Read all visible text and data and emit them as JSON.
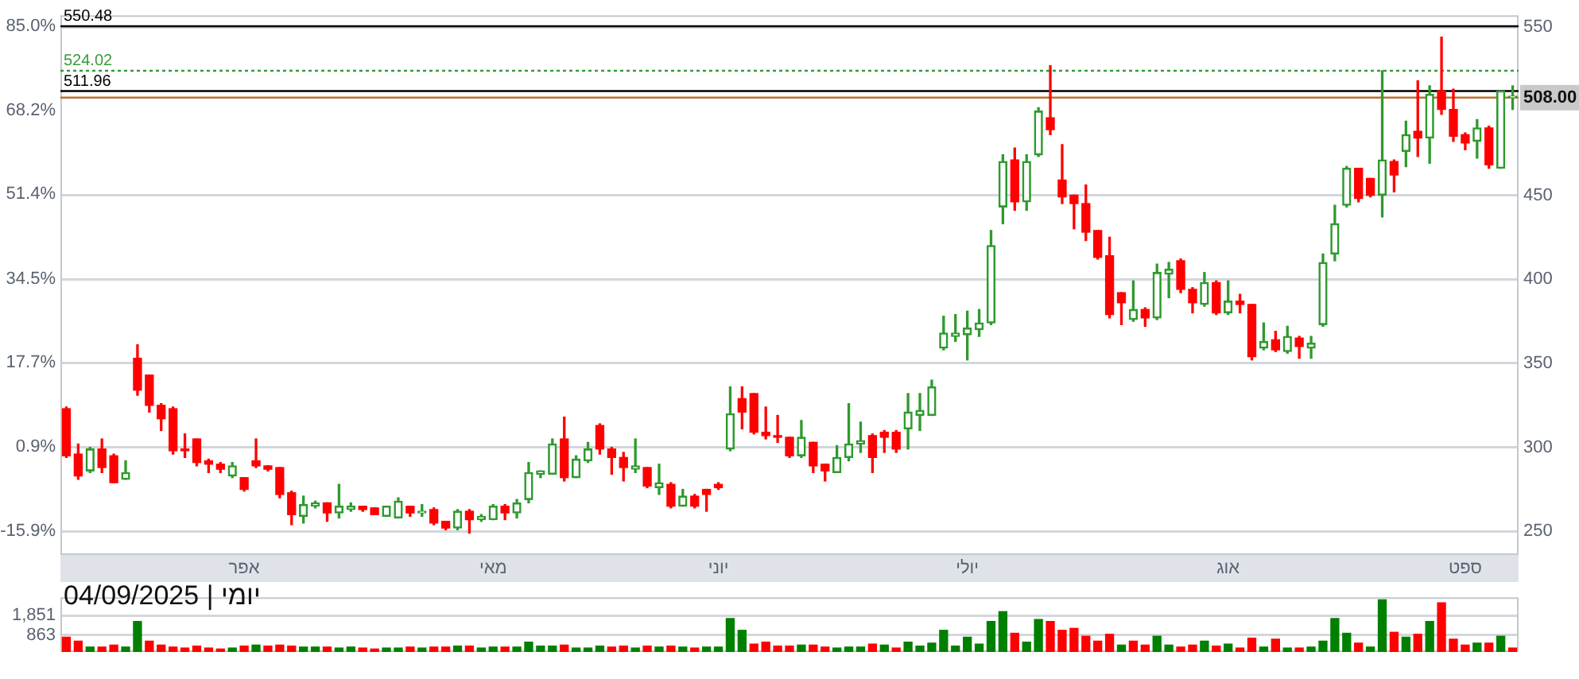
{
  "chart_data": [
    {
      "type": "candlestick",
      "categories": [
        null,
        null,
        null,
        null,
        null,
        null,
        null,
        null,
        null,
        null,
        null,
        null,
        null,
        null,
        null,
        "אפר",
        null,
        null,
        null,
        null,
        null,
        null,
        null,
        null,
        null,
        null,
        null,
        null,
        null,
        null,
        null,
        null,
        null,
        null,
        null,
        null,
        "מאי",
        null,
        null,
        null,
        null,
        null,
        null,
        null,
        null,
        null,
        null,
        null,
        null,
        null,
        null,
        null,
        null,
        null,
        null,
        "יוני",
        null,
        null,
        null,
        null,
        null,
        null,
        null,
        null,
        null,
        null,
        null,
        null,
        null,
        null,
        null,
        null,
        null,
        null,
        null,
        null,
        "יולי",
        null,
        null,
        null,
        null,
        null,
        null,
        null,
        null,
        null,
        null,
        null,
        null,
        null,
        null,
        null,
        null,
        null,
        null,
        null,
        null,
        null,
        "אוג",
        null,
        null,
        null,
        null,
        null,
        null,
        null,
        null,
        null,
        null,
        null,
        null,
        null,
        null,
        null,
        null,
        null,
        null,
        null,
        "ספט",
        null,
        null,
        null,
        null
      ],
      "ohlc": [
        [
          323,
          324,
          294,
          295
        ],
        [
          296,
          302,
          281,
          283
        ],
        [
          286,
          300,
          285,
          299
        ],
        [
          299,
          305,
          285,
          288
        ],
        [
          295,
          296,
          279,
          279
        ],
        [
          281,
          292,
          281,
          285
        ],
        [
          353,
          361,
          331,
          334
        ],
        [
          343,
          343,
          321,
          325
        ],
        [
          325,
          326,
          310,
          317
        ],
        [
          323,
          324,
          296,
          298
        ],
        [
          299,
          308,
          294,
          298
        ],
        [
          305,
          305,
          289,
          291
        ],
        [
          292,
          293,
          285,
          290
        ],
        [
          290,
          291,
          285,
          287
        ],
        [
          283,
          291,
          282,
          289
        ],
        [
          282,
          282,
          274,
          275
        ],
        [
          292,
          305,
          288,
          289
        ],
        [
          289,
          289,
          286,
          287
        ],
        [
          288,
          288,
          270,
          272
        ],
        [
          273,
          274,
          254,
          260
        ],
        [
          259,
          271,
          255,
          266
        ],
        [
          265,
          268,
          264,
          267
        ],
        [
          267,
          267,
          256,
          261
        ],
        [
          261,
          278,
          258,
          265
        ],
        [
          263,
          267,
          262,
          265
        ],
        [
          265,
          265,
          262,
          263
        ],
        [
          264,
          264,
          260,
          260
        ],
        [
          259,
          265,
          259,
          265
        ],
        [
          258,
          270,
          258,
          268
        ],
        [
          265,
          265,
          259,
          261
        ],
        [
          261,
          266,
          259,
          262
        ],
        [
          263,
          264,
          254,
          255
        ],
        [
          256,
          256,
          251,
          252
        ],
        [
          252,
          263,
          251,
          262
        ],
        [
          262,
          263,
          249,
          257
        ],
        [
          257,
          260,
          256,
          259
        ],
        [
          257,
          266,
          257,
          265
        ],
        [
          265,
          266,
          257,
          261
        ],
        [
          261,
          269,
          258,
          267
        ],
        [
          269,
          291,
          267,
          285
        ],
        [
          284,
          286,
          282,
          286
        ],
        [
          284,
          305,
          284,
          302
        ],
        [
          305,
          318,
          280,
          282
        ],
        [
          282,
          295,
          282,
          293
        ],
        [
          292,
          303,
          291,
          299
        ],
        [
          313,
          314,
          296,
          299
        ],
        [
          299,
          300,
          284,
          294
        ],
        [
          294,
          297,
          280,
          288
        ],
        [
          287,
          305,
          285,
          289
        ],
        [
          288,
          288,
          276,
          277
        ],
        [
          276,
          290,
          272,
          279
        ],
        [
          278,
          279,
          264,
          265
        ],
        [
          265,
          275,
          265,
          271
        ],
        [
          271,
          272,
          264,
          265
        ],
        [
          275,
          275,
          262,
          272
        ],
        [
          278,
          279,
          275,
          276
        ],
        [
          299,
          336,
          298,
          320
        ],
        [
          329,
          336,
          311,
          321
        ],
        [
          332,
          332,
          308,
          309
        ],
        [
          309,
          324,
          305,
          307
        ],
        [
          307,
          319,
          303,
          306
        ],
        [
          306,
          306,
          294,
          295
        ],
        [
          295,
          316,
          294,
          306
        ],
        [
          303,
          303,
          285,
          289
        ],
        [
          290,
          290,
          280,
          286
        ],
        [
          285,
          301,
          285,
          294
        ],
        [
          294,
          326,
          292,
          302
        ],
        [
          302,
          315,
          297,
          304
        ],
        [
          307,
          308,
          285,
          294
        ],
        [
          309,
          310,
          297,
          306
        ],
        [
          309,
          310,
          297,
          299
        ],
        [
          311,
          332,
          299,
          321
        ],
        [
          319,
          332,
          310,
          322
        ],
        [
          319,
          340,
          319,
          336
        ],
        [
          359,
          378,
          358,
          368
        ],
        [
          366,
          379,
          363,
          368
        ],
        [
          367,
          381,
          352,
          371
        ],
        [
          370,
          382,
          366,
          374
        ],
        [
          374,
          429,
          373,
          420
        ],
        [
          443,
          474,
          433,
          470
        ],
        [
          471,
          478,
          441,
          446
        ],
        [
          446,
          474,
          441,
          470
        ],
        [
          474,
          502,
          473,
          500
        ],
        [
          496,
          527,
          486,
          489
        ],
        [
          459,
          480,
          445,
          449
        ],
        [
          450,
          450,
          430,
          445
        ],
        [
          445,
          456,
          423,
          428
        ],
        [
          429,
          429,
          412,
          413
        ],
        [
          414,
          425,
          377,
          379
        ],
        [
          392,
          392,
          373,
          386
        ],
        [
          376,
          399,
          375,
          382
        ],
        [
          382,
          383,
          372,
          377
        ],
        [
          377,
          409,
          376,
          404
        ],
        [
          403,
          410,
          389,
          406
        ],
        [
          411,
          412,
          392,
          394
        ],
        [
          394,
          395,
          380,
          386
        ],
        [
          385,
          404,
          384,
          398
        ],
        [
          398,
          399,
          379,
          380
        ],
        [
          380,
          399,
          379,
          387
        ],
        [
          387,
          391,
          380,
          385
        ],
        [
          385,
          385,
          352,
          354
        ],
        [
          359,
          374,
          358,
          363
        ],
        [
          364,
          369,
          357,
          358
        ],
        [
          357,
          372,
          356,
          366
        ],
        [
          365,
          366,
          353,
          360
        ],
        [
          359,
          366,
          353,
          362
        ],
        [
          373,
          415,
          372,
          410
        ],
        [
          415,
          444,
          411,
          433
        ],
        [
          444,
          467,
          443,
          466
        ],
        [
          466,
          466,
          446,
          448
        ],
        [
          460,
          460,
          449,
          450
        ],
        [
          450,
          524,
          437,
          471
        ],
        [
          470,
          471,
          452,
          462
        ],
        [
          476,
          494,
          467,
          486
        ],
        [
          488,
          518,
          473,
          484
        ],
        [
          484,
          515,
          469,
          510
        ],
        [
          512,
          544,
          498,
          501
        ],
        [
          501,
          513,
          482,
          485
        ],
        [
          486,
          487,
          477,
          481
        ],
        [
          482,
          495,
          472,
          490
        ],
        [
          490,
          491,
          466,
          468
        ],
        [
          466,
          512,
          466,
          512
        ],
        [
          508,
          515,
          501,
          508
        ]
      ],
      "colors": [
        "#ff0000",
        "#ff0000",
        "#2e9a2e",
        "#ff0000",
        "#ff0000",
        "#2e9a2e",
        "#ff0000",
        "#ff0000",
        "#ff0000",
        "#ff0000",
        "#ff0000",
        "#ff0000",
        "#ff0000",
        "#ff0000",
        "#2e9a2e",
        "#ff0000",
        "#ff0000",
        "#ff0000",
        "#ff0000",
        "#ff0000",
        "#2e9a2e",
        "#2e9a2e",
        "#ff0000",
        "#2e9a2e",
        "#2e9a2e",
        "#ff0000",
        "#ff0000",
        "#2e9a2e",
        "#2e9a2e",
        "#ff0000",
        "#2e9a2e",
        "#ff0000",
        "#ff0000",
        "#2e9a2e",
        "#ff0000",
        "#2e9a2e",
        "#2e9a2e",
        "#ff0000",
        "#2e9a2e",
        "#2e9a2e",
        "#2e9a2e",
        "#2e9a2e",
        "#ff0000",
        "#2e9a2e",
        "#2e9a2e",
        "#ff0000",
        "#ff0000",
        "#ff0000",
        "#2e9a2e",
        "#ff0000",
        "#2e9a2e",
        "#ff0000",
        "#2e9a2e",
        "#ff0000",
        "#ff0000",
        "#ff0000",
        "#2e9a2e",
        "#ff0000",
        "#ff0000",
        "#ff0000",
        "#ff0000",
        "#ff0000",
        "#2e9a2e",
        "#ff0000",
        "#ff0000",
        "#2e9a2e",
        "#2e9a2e",
        "#2e9a2e",
        "#ff0000",
        "#ff0000",
        "#ff0000",
        "#2e9a2e",
        "#2e9a2e",
        "#2e9a2e",
        "#2e9a2e",
        "#2e9a2e",
        "#2e9a2e",
        "#2e9a2e",
        "#2e9a2e",
        "#2e9a2e",
        "#ff0000",
        "#2e9a2e",
        "#2e9a2e",
        "#ff0000",
        "#ff0000",
        "#ff0000",
        "#ff0000",
        "#ff0000",
        "#ff0000",
        "#ff0000",
        "#2e9a2e",
        "#ff0000",
        "#2e9a2e",
        "#2e9a2e",
        "#ff0000",
        "#ff0000",
        "#2e9a2e",
        "#ff0000",
        "#2e9a2e",
        "#ff0000",
        "#ff0000",
        "#2e9a2e",
        "#ff0000",
        "#2e9a2e",
        "#ff0000",
        "#2e9a2e",
        "#2e9a2e",
        "#2e9a2e",
        "#2e9a2e",
        "#ff0000",
        "#ff0000",
        "#2e9a2e",
        "#ff0000",
        "#2e9a2e",
        "#ff0000",
        "#2e9a2e",
        "#ff0000",
        "#ff0000",
        "#ff0000",
        "#2e9a2e",
        "#ff0000",
        "#2e9a2e",
        "#2e9a2e"
      ],
      "ylim": [
        236,
        557
      ],
      "yticks": [
        250,
        300,
        350,
        400,
        450,
        550
      ],
      "y2lim": [
        -20.7,
        87.2
      ],
      "y2ticks": [
        {
          "value": -15.9,
          "label": "-15.9%"
        },
        {
          "value": 0.9,
          "label": "0.9%"
        },
        {
          "value": 17.7,
          "label": "17.7%"
        },
        {
          "value": 34.5,
          "label": "34.5%"
        },
        {
          "value": 51.4,
          "label": "51.4%"
        },
        {
          "value": 68.2,
          "label": "68.2%"
        },
        {
          "value": 85,
          "label": "85.0%"
        }
      ],
      "grid": "y",
      "ref_lines": [
        {
          "axis": "y",
          "value": 550.48,
          "label": "550.48",
          "color": "#000000"
        },
        {
          "axis": "y",
          "value": 524.02,
          "label": "524.02",
          "color": "#3a9a3a",
          "line_style": "dotted"
        },
        {
          "axis": "y",
          "value": 511.96,
          "label": "511.96",
          "color": "#000000"
        },
        {
          "axis": "y",
          "value": 508,
          "color": "#c0702a"
        }
      ],
      "annotations": [
        {
          "text": "508.00",
          "y": 508
        }
      ]
    },
    {
      "type": "bar",
      "title": "יומי | 04/09/2025",
      "categories": [
        null,
        null,
        null,
        null,
        null,
        null,
        null,
        null,
        null,
        null,
        null,
        null,
        null,
        null,
        null,
        null,
        null,
        null,
        null,
        null,
        null,
        null,
        null,
        null,
        null,
        null,
        null,
        null,
        null,
        null,
        null,
        null,
        null,
        null,
        null,
        null,
        null,
        null,
        null,
        null,
        null,
        null,
        null,
        null,
        null,
        null,
        null,
        null,
        null,
        null,
        null,
        null,
        null,
        null,
        null,
        null,
        null,
        null,
        null,
        null,
        null,
        null,
        null,
        null,
        null,
        null,
        null,
        null,
        null,
        null,
        null,
        null,
        null,
        null,
        null,
        null,
        null,
        null,
        null,
        null,
        null,
        null,
        null,
        null,
        null,
        null,
        null,
        null,
        null,
        null,
        null,
        null,
        null,
        null,
        null,
        null,
        null,
        null,
        null,
        null,
        null,
        null,
        null,
        null,
        null,
        null,
        null,
        null,
        null,
        null,
        null,
        null,
        null,
        null,
        null,
        null,
        null,
        null,
        null,
        null,
        null,
        null,
        null
      ],
      "values": [
        750,
        550,
        250,
        250,
        350,
        250,
        1550,
        550,
        350,
        250,
        200,
        300,
        200,
        150,
        200,
        300,
        350,
        300,
        350,
        300,
        250,
        250,
        250,
        200,
        250,
        200,
        150,
        200,
        200,
        250,
        200,
        250,
        250,
        300,
        300,
        200,
        250,
        250,
        250,
        500,
        300,
        300,
        350,
        200,
        200,
        300,
        250,
        300,
        200,
        300,
        250,
        300,
        250,
        200,
        250,
        250,
        1700,
        1100,
        400,
        500,
        300,
        300,
        350,
        350,
        250,
        200,
        250,
        250,
        400,
        350,
        200,
        500,
        300,
        450,
        1100,
        300,
        750,
        400,
        1550,
        2050,
        950,
        500,
        1650,
        1550,
        1100,
        1200,
        800,
        550,
        900,
        350,
        550,
        350,
        800,
        350,
        250,
        350,
        550,
        300,
        400,
        200,
        700,
        250,
        650,
        200,
        200,
        250,
        550,
        1700,
        950,
        450,
        250,
        2650,
        1000,
        750,
        900,
        1550,
        2500,
        650,
        350,
        450,
        450,
        800,
        200
      ],
      "colors": [
        "#ff0000",
        "#ff0000",
        "#008000",
        "#ff0000",
        "#ff0000",
        "#008000",
        "#008000",
        "#ff0000",
        "#ff0000",
        "#ff0000",
        "#ff0000",
        "#ff0000",
        "#ff0000",
        "#ff0000",
        "#008000",
        "#ff0000",
        "#008000",
        "#ff0000",
        "#ff0000",
        "#ff0000",
        "#008000",
        "#008000",
        "#ff0000",
        "#008000",
        "#008000",
        "#ff0000",
        "#ff0000",
        "#008000",
        "#008000",
        "#ff0000",
        "#008000",
        "#ff0000",
        "#ff0000",
        "#008000",
        "#ff0000",
        "#008000",
        "#008000",
        "#ff0000",
        "#008000",
        "#008000",
        "#008000",
        "#008000",
        "#ff0000",
        "#008000",
        "#008000",
        "#008000",
        "#ff0000",
        "#ff0000",
        "#008000",
        "#ff0000",
        "#008000",
        "#ff0000",
        "#008000",
        "#ff0000",
        "#008000",
        "#008000",
        "#008000",
        "#008000",
        "#ff0000",
        "#ff0000",
        "#ff0000",
        "#ff0000",
        "#008000",
        "#ff0000",
        "#ff0000",
        "#008000",
        "#008000",
        "#008000",
        "#ff0000",
        "#008000",
        "#ff0000",
        "#008000",
        "#008000",
        "#008000",
        "#008000",
        "#008000",
        "#008000",
        "#008000",
        "#008000",
        "#008000",
        "#ff0000",
        "#008000",
        "#008000",
        "#ff0000",
        "#ff0000",
        "#ff0000",
        "#ff0000",
        "#ff0000",
        "#ff0000",
        "#008000",
        "#ff0000",
        "#ff0000",
        "#008000",
        "#008000",
        "#ff0000",
        "#ff0000",
        "#008000",
        "#ff0000",
        "#008000",
        "#ff0000",
        "#ff0000",
        "#008000",
        "#ff0000",
        "#008000",
        "#ff0000",
        "#008000",
        "#008000",
        "#008000",
        "#008000",
        "#ff0000",
        "#008000",
        "#008000",
        "#ff0000",
        "#008000",
        "#ff0000",
        "#008000",
        "#ff0000",
        "#ff0000",
        "#ff0000",
        "#008000",
        "#ff0000",
        "#008000",
        "#ff0000"
      ],
      "ylim": [
        0,
        2780
      ],
      "yticks": [
        863,
        {
          "value": 1851,
          "label": "1,851"
        }
      ],
      "grid": "y",
      "tick_labels": "y"
    }
  ]
}
